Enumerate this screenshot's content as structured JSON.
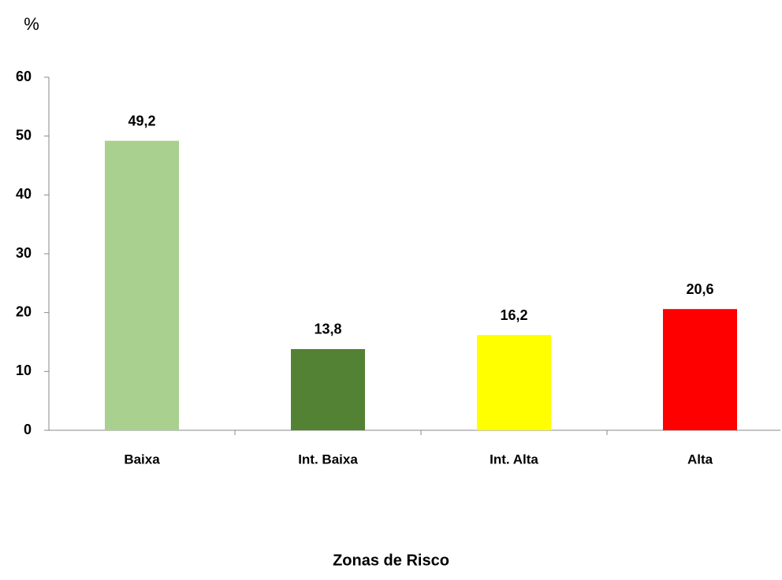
{
  "chart_data": {
    "type": "bar",
    "y_axis_label": "%",
    "x_axis_label": "Zonas de Risco",
    "categories": [
      "Baixa",
      "Int. Baixa",
      "Int. Alta",
      "Alta"
    ],
    "values": [
      49.2,
      13.8,
      16.2,
      20.6
    ],
    "value_labels": [
      "49,2",
      "13,8",
      "16,2",
      "20,6"
    ],
    "colors": [
      "#a9d08e",
      "#548235",
      "#ffff00",
      "#ff0000"
    ],
    "ylim": [
      0,
      60
    ],
    "yticks": [
      0,
      10,
      20,
      30,
      40,
      50,
      60
    ],
    "grid": false
  }
}
